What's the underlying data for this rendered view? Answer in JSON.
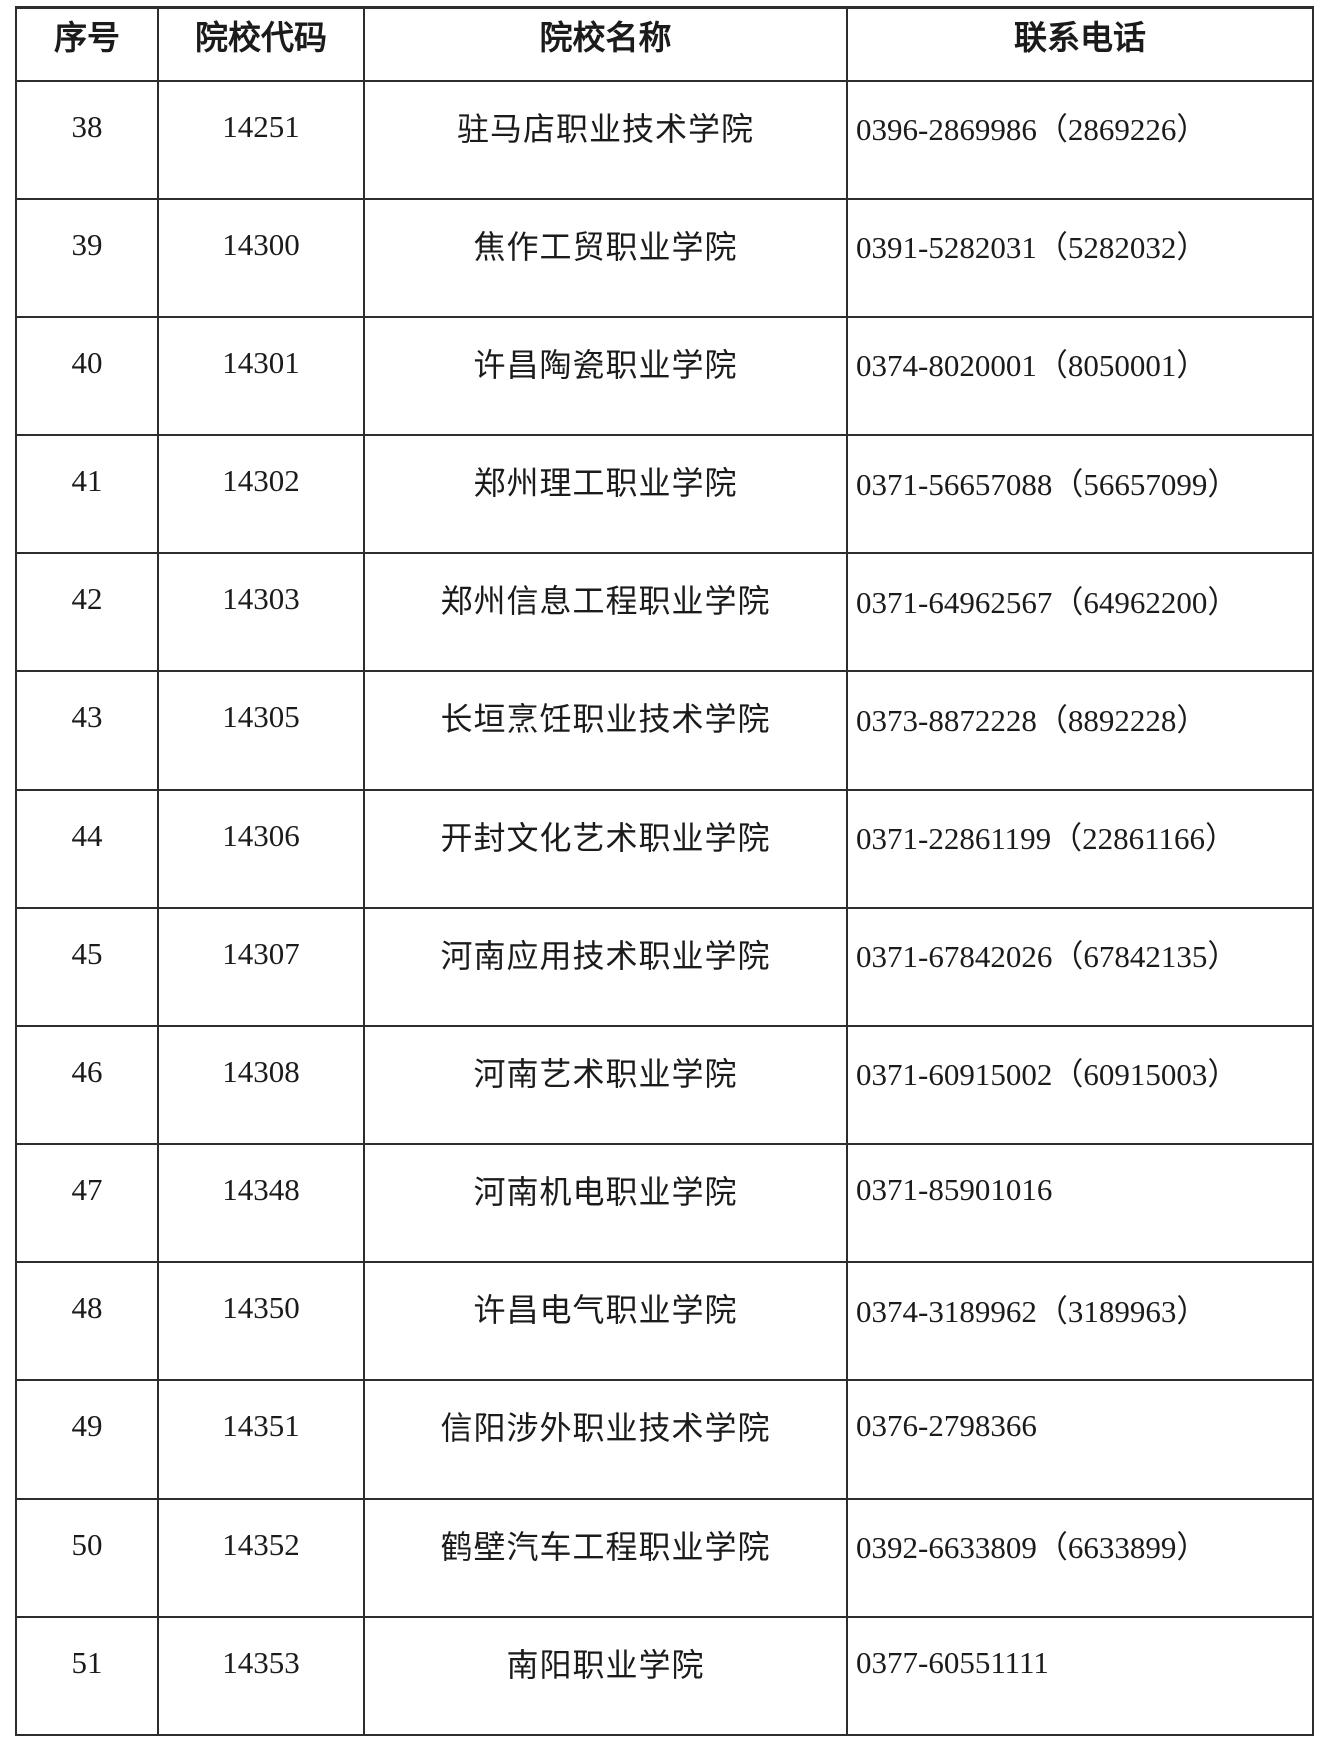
{
  "page": {
    "background_color": "#ffffff",
    "border_color": "#2d2d2d",
    "text_color": "#1b1b1b"
  },
  "table": {
    "headers": [
      "序号",
      "院校代码",
      "院校名称",
      "联系电话"
    ],
    "rows": [
      {
        "no": "38",
        "code": "14251",
        "name": "驻马店职业技术学院",
        "phone": "0396-2869986（2869226）"
      },
      {
        "no": "39",
        "code": "14300",
        "name": "焦作工贸职业学院",
        "phone": "0391-5282031（5282032）"
      },
      {
        "no": "40",
        "code": "14301",
        "name": "许昌陶瓷职业学院",
        "phone": "0374-8020001（8050001）"
      },
      {
        "no": "41",
        "code": "14302",
        "name": "郑州理工职业学院",
        "phone": "0371-56657088（56657099）"
      },
      {
        "no": "42",
        "code": "14303",
        "name": "郑州信息工程职业学院",
        "phone": "0371-64962567（64962200）"
      },
      {
        "no": "43",
        "code": "14305",
        "name": "长垣烹饪职业技术学院",
        "phone": "0373-8872228（8892228）"
      },
      {
        "no": "44",
        "code": "14306",
        "name": "开封文化艺术职业学院",
        "phone": "0371-22861199（22861166）"
      },
      {
        "no": "45",
        "code": "14307",
        "name": "河南应用技术职业学院",
        "phone": "0371-67842026（67842135）"
      },
      {
        "no": "46",
        "code": "14308",
        "name": "河南艺术职业学院",
        "phone": "0371-60915002（60915003）"
      },
      {
        "no": "47",
        "code": "14348",
        "name": "河南机电职业学院",
        "phone": "0371-85901016"
      },
      {
        "no": "48",
        "code": "14350",
        "name": "许昌电气职业学院",
        "phone": "0374-3189962（3189963）"
      },
      {
        "no": "49",
        "code": "14351",
        "name": "信阳涉外职业技术学院",
        "phone": "0376-2798366"
      },
      {
        "no": "50",
        "code": "14352",
        "name": "鹤壁汽车工程职业学院",
        "phone": "0392-6633809（6633899）"
      },
      {
        "no": "51",
        "code": "14353",
        "name": "南阳职业学院",
        "phone": "0377-60551111"
      }
    ]
  }
}
